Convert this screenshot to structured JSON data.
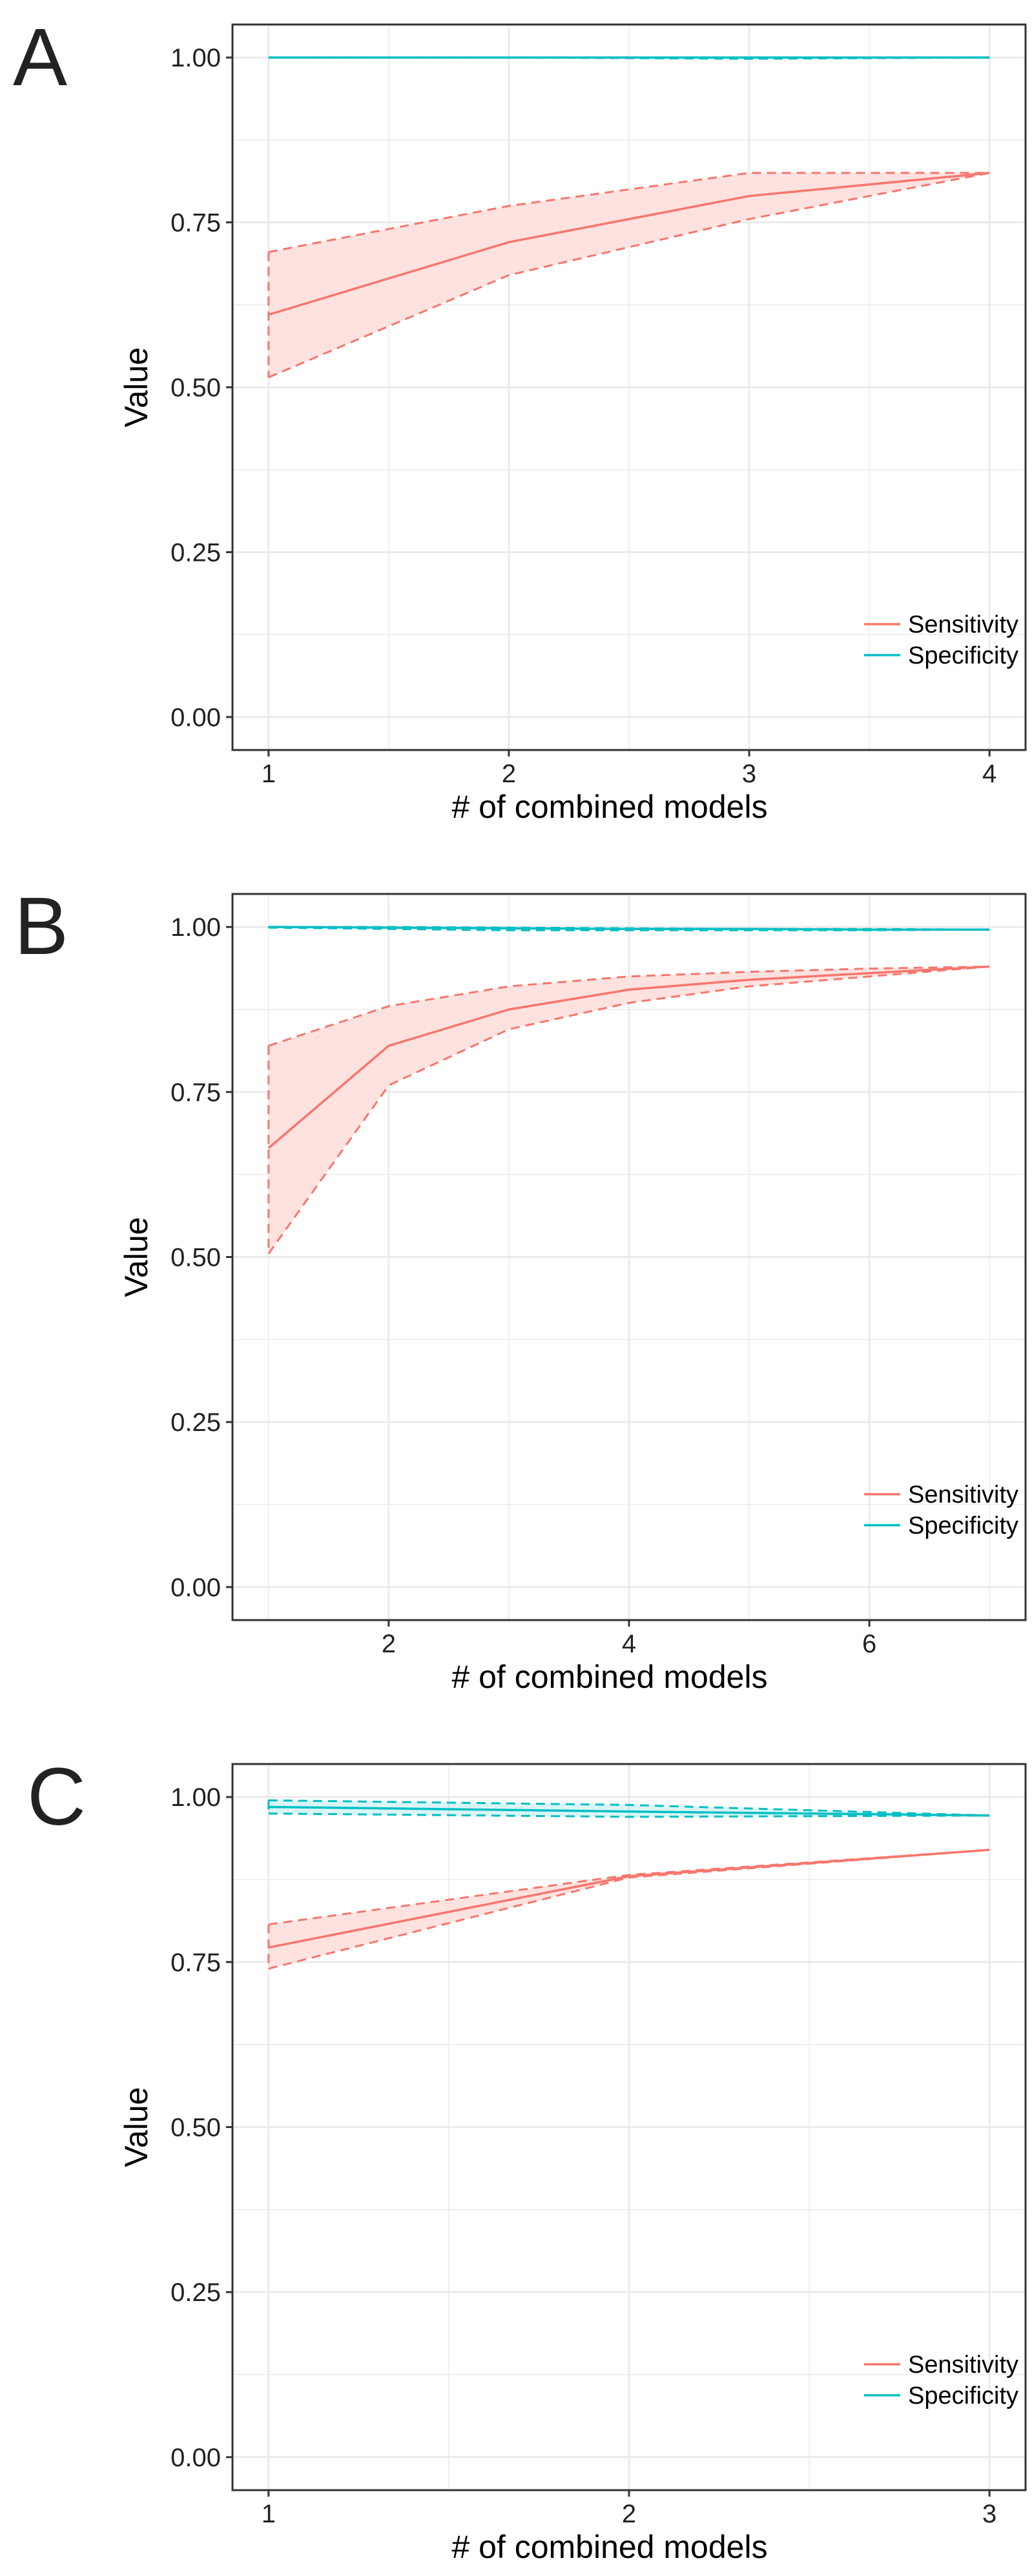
{
  "colors": {
    "sensitivity": "#f8766d",
    "specificity": "#00bfc4",
    "ribbon": "#fde2df",
    "grid": "#ebebeb",
    "panel_border": "#333333",
    "text": "#222222"
  },
  "chart_data": [
    {
      "panel_label": "A",
      "type": "line",
      "xlabel": "# of combined models",
      "ylabel": "Value",
      "xlim": [
        0.85,
        4.15
      ],
      "ylim": [
        -0.05,
        1.05
      ],
      "xticks": [
        1,
        2,
        3,
        4
      ],
      "yticks": [
        0.0,
        0.25,
        0.5,
        0.75,
        1.0
      ],
      "ytick_labels": [
        "0.00",
        "0.25",
        "0.50",
        "0.75",
        "1.00"
      ],
      "grid": true,
      "legend_position": "bottom-right",
      "series": [
        {
          "name": "Sensitivity",
          "color_key": "sensitivity",
          "x": [
            1,
            2,
            3,
            4
          ],
          "values": [
            0.61,
            0.72,
            0.79,
            0.825
          ],
          "lower": [
            0.515,
            0.67,
            0.755,
            0.825
          ],
          "upper": [
            0.705,
            0.775,
            0.825,
            0.825
          ]
        },
        {
          "name": "Specificity",
          "color_key": "specificity",
          "x": [
            1,
            2,
            3,
            4
          ],
          "values": [
            1.0,
            1.0,
            1.0,
            1.0
          ],
          "lower": [
            1.0,
            1.0,
            0.998,
            1.0
          ],
          "upper": [
            1.0,
            1.0,
            1.0,
            1.0
          ]
        }
      ]
    },
    {
      "panel_label": "B",
      "type": "line",
      "xlabel": "# of combined models",
      "ylabel": "Value",
      "xlim": [
        0.7,
        7.3
      ],
      "ylim": [
        -0.05,
        1.05
      ],
      "xticks": [
        2,
        4,
        6
      ],
      "yticks": [
        0.0,
        0.25,
        0.5,
        0.75,
        1.0
      ],
      "ytick_labels": [
        "0.00",
        "0.25",
        "0.50",
        "0.75",
        "1.00"
      ],
      "grid": true,
      "legend_position": "bottom-right",
      "series": [
        {
          "name": "Sensitivity",
          "color_key": "sensitivity",
          "x": [
            1,
            2,
            3,
            4,
            5,
            6,
            7
          ],
          "values": [
            0.665,
            0.82,
            0.875,
            0.905,
            0.92,
            0.93,
            0.94
          ],
          "lower": [
            0.505,
            0.76,
            0.845,
            0.885,
            0.91,
            0.925,
            0.94
          ],
          "upper": [
            0.82,
            0.88,
            0.91,
            0.925,
            0.932,
            0.937,
            0.94
          ]
        },
        {
          "name": "Specificity",
          "color_key": "specificity",
          "x": [
            1,
            2,
            3,
            4,
            5,
            6,
            7
          ],
          "values": [
            1.0,
            0.999,
            0.998,
            0.997,
            0.997,
            0.996,
            0.996
          ],
          "lower": [
            0.999,
            0.997,
            0.995,
            0.995,
            0.995,
            0.995,
            0.996
          ],
          "upper": [
            1.0,
            1.0,
            0.999,
            0.998,
            0.997,
            0.997,
            0.996
          ]
        }
      ]
    },
    {
      "panel_label": "C",
      "type": "line",
      "xlabel": "# of combined models",
      "ylabel": "Value",
      "xlim": [
        0.9,
        3.1
      ],
      "ylim": [
        -0.05,
        1.05
      ],
      "xticks": [
        1,
        2,
        3
      ],
      "yticks": [
        0.0,
        0.25,
        0.5,
        0.75,
        1.0
      ],
      "ytick_labels": [
        "0.00",
        "0.25",
        "0.50",
        "0.75",
        "1.00"
      ],
      "grid": true,
      "legend_position": "bottom-right",
      "series": [
        {
          "name": "Sensitivity",
          "color_key": "sensitivity",
          "x": [
            1,
            2,
            3
          ],
          "values": [
            0.772,
            0.88,
            0.92
          ],
          "lower": [
            0.74,
            0.878,
            0.92
          ],
          "upper": [
            0.807,
            0.882,
            0.92
          ]
        },
        {
          "name": "Specificity",
          "color_key": "specificity",
          "x": [
            1,
            2,
            3
          ],
          "values": [
            0.985,
            0.978,
            0.972
          ],
          "lower": [
            0.975,
            0.97,
            0.972
          ],
          "upper": [
            0.995,
            0.988,
            0.972
          ]
        }
      ]
    }
  ]
}
